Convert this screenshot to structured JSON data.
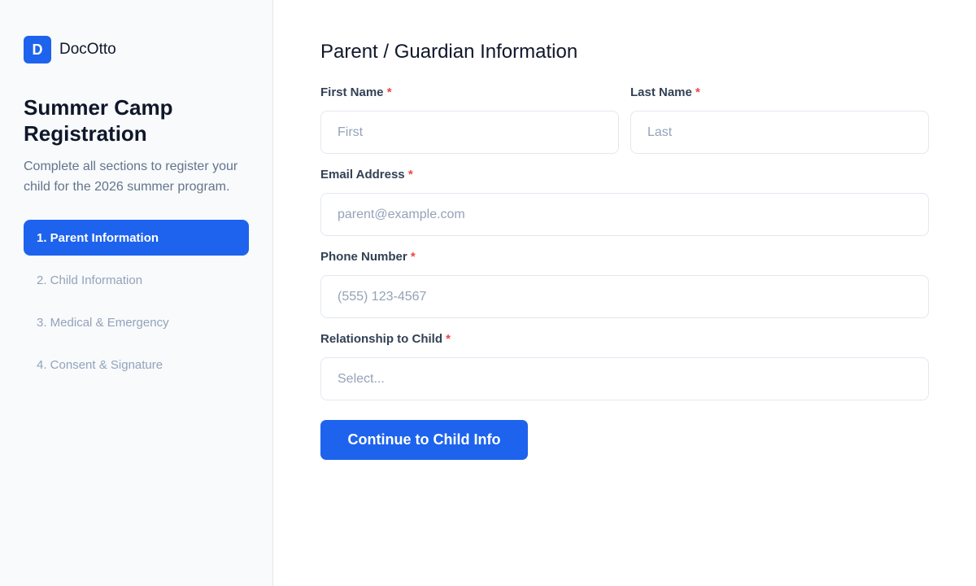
{
  "brand": {
    "mark": "D",
    "name": "DocOtto",
    "color": "#1d63ed"
  },
  "sidebar": {
    "title": "Summer Camp Registration",
    "description": "Complete all sections to register your child for the 2026 summer program.",
    "steps": [
      {
        "label": "1. Parent Information",
        "active": true
      },
      {
        "label": "2. Child Information"
      },
      {
        "label": "3. Medical & Emergency"
      },
      {
        "label": "4. Consent & Signature"
      }
    ]
  },
  "form": {
    "title": "Parent / Guardian Information",
    "required_mark": "*",
    "first_name": {
      "label": "First Name",
      "placeholder": "First"
    },
    "last_name": {
      "label": "Last Name",
      "placeholder": "Last"
    },
    "email": {
      "label": "Email Address",
      "placeholder": "parent@example.com"
    },
    "phone": {
      "label": "Phone Number",
      "placeholder": "(555) 123-4567"
    },
    "relationship": {
      "label": "Relationship to Child",
      "value": "Select..."
    },
    "submit_label": "Continue to Child Info"
  }
}
